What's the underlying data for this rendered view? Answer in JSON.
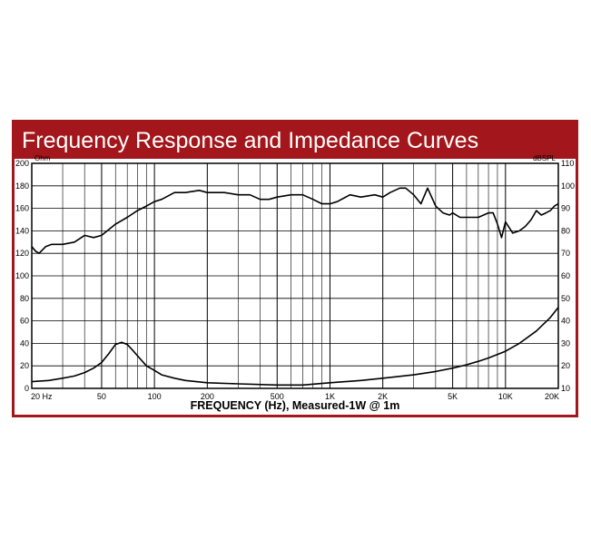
{
  "chart_data": {
    "type": "line",
    "title": "Frequency Response and Impedance Curves",
    "xlabel": "FREQUENCY (Hz), Measured-1W @ 1m",
    "x_scale": "log",
    "xlim": [
      20,
      20000
    ],
    "x_ticks": [
      20,
      50,
      100,
      200,
      500,
      1000,
      2000,
      5000,
      10000,
      20000
    ],
    "x_tick_labels": [
      "20 Hz",
      "50",
      "100",
      "200",
      "500",
      "1K",
      "2K",
      "5K",
      "10K",
      "20K"
    ],
    "y_left": {
      "unit": "Ohm",
      "ylim": [
        0,
        200
      ],
      "ticks": [
        "0",
        "20",
        "40",
        "60",
        "80",
        "100",
        "120",
        "140",
        "160",
        "180",
        "200"
      ]
    },
    "y_right": {
      "unit": "dBSPL",
      "ylim": [
        10,
        110
      ],
      "ticks": [
        "10",
        "20",
        "30",
        "40",
        "50",
        "60",
        "70",
        "80",
        "90",
        "100",
        "110"
      ]
    },
    "grid": true,
    "series": [
      {
        "axis": "right",
        "x": [
          20,
          21,
          22,
          24,
          26,
          30,
          35,
          40,
          45,
          50,
          60,
          70,
          80,
          90,
          100,
          110,
          130,
          150,
          180,
          200,
          250,
          300,
          350,
          400,
          450,
          500,
          600,
          700,
          800,
          900,
          1000,
          1100,
          1300,
          1500,
          1800,
          2000,
          2200,
          2500,
          2700,
          3000,
          3300,
          3600,
          4000,
          4400,
          4800,
          5000,
          5500,
          6000,
          7000,
          8000,
          8500,
          9000,
          9500,
          10000,
          11000,
          12000,
          13000,
          14000,
          15000,
          16000,
          17000,
          18000,
          19000,
          20000
        ],
        "values": [
          73,
          71,
          70,
          73,
          74,
          74,
          75,
          78,
          77,
          78,
          83,
          86,
          89,
          91,
          93,
          94,
          97,
          97,
          98,
          97,
          97,
          96,
          96,
          94,
          94,
          95,
          96,
          96,
          94,
          92,
          92,
          93,
          96,
          95,
          96,
          95,
          97,
          99,
          99,
          96,
          92,
          99,
          91,
          88,
          87,
          88,
          86,
          86,
          86,
          88,
          88,
          83,
          77,
          84,
          79,
          80,
          82,
          85,
          89,
          87,
          88,
          89,
          91,
          92
        ]
      },
      {
        "axis": "left",
        "x": [
          20,
          25,
          30,
          35,
          40,
          45,
          50,
          55,
          60,
          65,
          70,
          75,
          80,
          90,
          100,
          110,
          130,
          150,
          200,
          300,
          500,
          700,
          1000,
          1500,
          2000,
          3000,
          4000,
          5000,
          6000,
          7000,
          8000,
          10000,
          12000,
          15000,
          18000,
          20000
        ],
        "values": [
          6,
          7,
          9,
          11,
          14,
          18,
          23,
          31,
          39,
          41,
          39,
          34,
          29,
          20,
          16,
          12,
          9,
          7,
          5,
          4,
          3,
          3,
          5,
          7,
          9,
          12,
          15,
          18,
          21,
          24,
          27,
          33,
          40,
          51,
          63,
          72
        ]
      }
    ]
  }
}
